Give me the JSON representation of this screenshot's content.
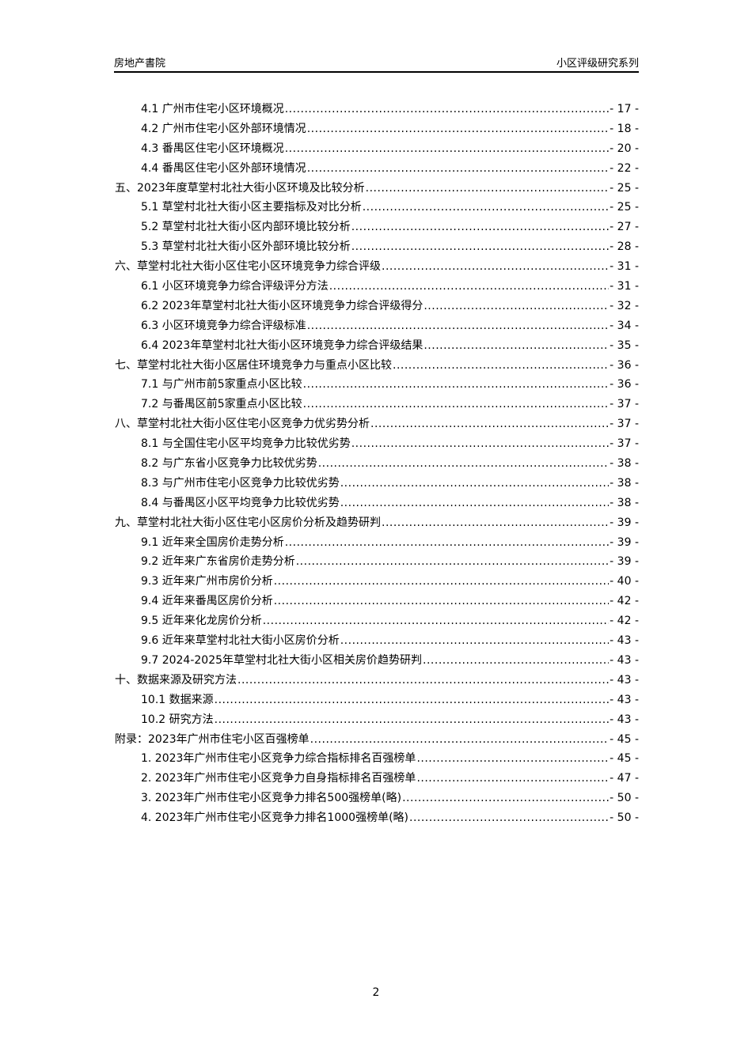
{
  "header": {
    "left": "房地产書院",
    "right": "小区评级研究系列"
  },
  "toc": [
    {
      "level": 2,
      "title": "4.1 广州市住宅小区环境概况",
      "page": "- 17 -"
    },
    {
      "level": 2,
      "title": "4.2 广州市住宅小区外部环境情况",
      "page": "- 18 -"
    },
    {
      "level": 2,
      "title": "4.3 番禺区住宅小区环境概况",
      "page": "- 20 -"
    },
    {
      "level": 2,
      "title": "4.4 番禺区住宅小区外部环境情况",
      "page": "- 22 -"
    },
    {
      "level": 1,
      "title": "五、2023年度草堂村北社大街小区环境及比较分析",
      "page": "- 25 -"
    },
    {
      "level": 2,
      "title": "5.1 草堂村北社大街小区主要指标及对比分析",
      "page": "- 25 -"
    },
    {
      "level": 2,
      "title": "5.2 草堂村北社大街小区内部环境比较分析",
      "page": "- 27 -"
    },
    {
      "level": 2,
      "title": "5.3 草堂村北社大街小区外部环境比较分析",
      "page": "- 28 -"
    },
    {
      "level": 1,
      "title": "六、草堂村北社大街小区住宅小区环境竞争力综合评级",
      "page": "- 31 -"
    },
    {
      "level": 2,
      "title": "6.1 小区环境竞争力综合评级评分方法",
      "page": "- 31 -"
    },
    {
      "level": 2,
      "title": "6.2 2023年草堂村北社大街小区环境竞争力综合评级得分",
      "page": "- 32 -"
    },
    {
      "level": 2,
      "title": "6.3 小区环境竞争力综合评级标准",
      "page": "- 34 -"
    },
    {
      "level": 2,
      "title": "6.4 2023年草堂村北社大街小区环境竞争力综合评级结果",
      "page": "- 35 -"
    },
    {
      "level": 1,
      "title": "七、草堂村北社大街小区居住环境竞争力与重点小区比较",
      "page": "- 36 -"
    },
    {
      "level": 2,
      "title": "7.1 与广州市前5家重点小区比较",
      "page": "- 36 -"
    },
    {
      "level": 2,
      "title": "7.2 与番禺区前5家重点小区比较",
      "page": "- 37 -"
    },
    {
      "level": 1,
      "title": "八、草堂村北社大街小区住宅小区竞争力优劣势分析",
      "page": "- 37 -"
    },
    {
      "level": 2,
      "title": "8.1 与全国住宅小区平均竞争力比较优劣势",
      "page": "- 37 -"
    },
    {
      "level": 2,
      "title": "8.2 与广东省小区竞争力比较优劣势",
      "page": "- 38 -"
    },
    {
      "level": 2,
      "title": "8.3 与广州市住宅小区竞争力比较优劣势",
      "page": "- 38 -"
    },
    {
      "level": 2,
      "title": "8.4 与番禺区小区平均竞争力比较优劣势",
      "page": "- 38 -"
    },
    {
      "level": 1,
      "title": "九、草堂村北社大街小区住宅小区房价分析及趋势研判",
      "page": "- 39 -"
    },
    {
      "level": 2,
      "title": "9.1 近年来全国房价走势分析",
      "page": "- 39 -"
    },
    {
      "level": 2,
      "title": "9.2 近年来广东省房价走势分析",
      "page": "- 39 -"
    },
    {
      "level": 2,
      "title": "9.3 近年来广州市房价分析",
      "page": "- 40 -"
    },
    {
      "level": 2,
      "title": "9.4 近年来番禺区房价分析",
      "page": "- 42 -"
    },
    {
      "level": 2,
      "title": "9.5 近年来化龙房价分析",
      "page": "- 42 -"
    },
    {
      "level": 2,
      "title": "9.6 近年来草堂村北社大街小区房价分析",
      "page": "- 43 -"
    },
    {
      "level": 2,
      "title": "9.7 2024-2025年草堂村北社大街小区相关房价趋势研判",
      "page": "- 43 -"
    },
    {
      "level": 1,
      "title": "十、数据来源及研究方法",
      "page": "- 43 -"
    },
    {
      "level": 2,
      "title": "10.1 数据来源",
      "page": "- 43 -"
    },
    {
      "level": 2,
      "title": "10.2 研究方法",
      "page": "- 43 -"
    },
    {
      "level": 1,
      "title": "附录：2023年广州市住宅小区百强榜单",
      "page": "- 45 -"
    },
    {
      "level": 2,
      "title": "1. 2023年广州市住宅小区竞争力综合指标排名百强榜单",
      "page": "- 45 -"
    },
    {
      "level": 2,
      "title": "2. 2023年广州市住宅小区竞争力自身指标排名百强榜单",
      "page": "- 47 -"
    },
    {
      "level": 2,
      "title": "3. 2023年广州市住宅小区竞争力排名500强榜单(略)",
      "page": "- 50 -"
    },
    {
      "level": 2,
      "title": "4. 2023年广州市住宅小区竞争力排名1000强榜单(略)",
      "page": "- 50 -"
    }
  ],
  "footer": {
    "page_number": "2"
  }
}
